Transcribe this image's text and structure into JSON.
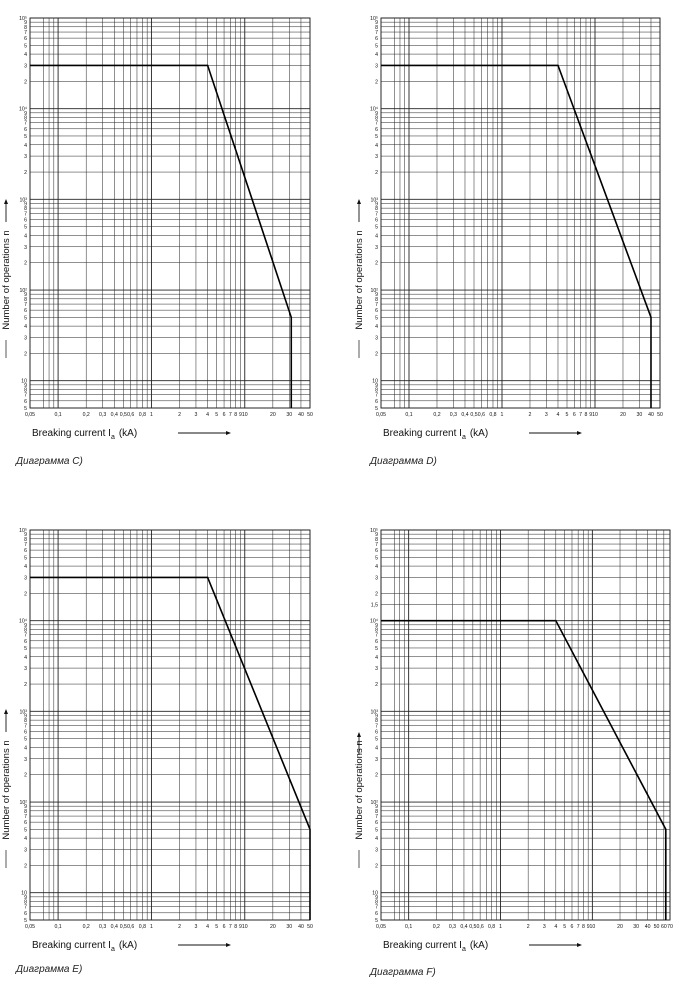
{
  "chart_data": [
    {
      "type": "line",
      "caption": "Диаграмма C)",
      "xlabel": "Breaking current  I",
      "xlabel_sub": "a",
      "xlabel_unit": "(kA)",
      "ylabel": "Number of operations n",
      "xscale": "log",
      "yscale": "log",
      "xlim": [
        0.05,
        50
      ],
      "ylim": [
        5,
        100000
      ],
      "x_ticks": [
        "0,05",
        "0,1",
        "0,2",
        "0,3",
        "0,4",
        "0,5",
        "0,6",
        "0,8",
        "1",
        "2",
        "3",
        "4",
        "5",
        "6",
        "7",
        "8",
        "9",
        "10",
        "20",
        "30",
        "40",
        "50"
      ],
      "y_ticks": [
        "10⁵",
        "9",
        "8",
        "7",
        "6",
        "5",
        "4",
        "3",
        "2",
        "10⁴",
        "9",
        "8",
        "7",
        "6",
        "5",
        "4",
        "3",
        "2",
        "10³",
        "9",
        "8",
        "7",
        "6",
        "5",
        "4",
        "3",
        "2",
        "10²",
        "9",
        "8",
        "7",
        "6",
        "5",
        "4",
        "3",
        "2",
        "10",
        "9",
        "8",
        "7",
        "6",
        "5"
      ],
      "grid": true,
      "x": [
        0.05,
        4,
        31.5,
        31.5
      ],
      "y": [
        30000,
        30000,
        50,
        5
      ]
    },
    {
      "type": "line",
      "caption": "Диаграмма D)",
      "xlabel": "Breaking current  I",
      "xlabel_sub": "a",
      "xlabel_unit": "(kA)",
      "ylabel": "Number of operations n",
      "xscale": "log",
      "yscale": "log",
      "xlim": [
        0.05,
        50
      ],
      "ylim": [
        5,
        100000
      ],
      "x_ticks": [
        "0,05",
        "0,1",
        "0,2",
        "0,3",
        "0,4",
        "0,5",
        "0,6",
        "0,8",
        "1",
        "2",
        "3",
        "4",
        "5",
        "6",
        "7",
        "8",
        "9",
        "10",
        "20",
        "30",
        "40",
        "50"
      ],
      "y_ticks": [
        "10⁵",
        "9",
        "8",
        "7",
        "6",
        "5",
        "4",
        "3",
        "2",
        "10⁴",
        "9",
        "8",
        "7",
        "6",
        "5",
        "4",
        "3",
        "2",
        "10³",
        "9",
        "8",
        "7",
        "6",
        "5",
        "4",
        "3",
        "2",
        "10²",
        "9",
        "8",
        "7",
        "6",
        "5",
        "4",
        "3",
        "2",
        "10",
        "9",
        "8",
        "7",
        "6",
        "5"
      ],
      "grid": true,
      "x": [
        0.05,
        4,
        40,
        40
      ],
      "y": [
        30000,
        30000,
        50,
        5
      ]
    },
    {
      "type": "line",
      "caption": "Диаграмма E)",
      "xlabel": "Breaking current  I",
      "xlabel_sub": "a",
      "xlabel_unit": "(kA)",
      "ylabel": "Number of operations n",
      "xscale": "log",
      "yscale": "log",
      "xlim": [
        0.05,
        50
      ],
      "ylim": [
        5,
        100000
      ],
      "x_ticks": [
        "0,05",
        "0,1",
        "0,2",
        "0,3",
        "0,4",
        "0,5",
        "0,6",
        "0,8",
        "1",
        "2",
        "3",
        "4",
        "5",
        "6",
        "7",
        "8",
        "9",
        "10",
        "20",
        "30",
        "40",
        "50"
      ],
      "y_ticks": [
        "10⁵",
        "9",
        "8",
        "7",
        "6",
        "5",
        "4",
        "3",
        "2",
        "10⁴",
        "9",
        "8",
        "7",
        "6",
        "5",
        "4",
        "3",
        "2",
        "10³",
        "9",
        "8",
        "7",
        "6",
        "5",
        "4",
        "3",
        "2",
        "10²",
        "9",
        "8",
        "7",
        "6",
        "5",
        "4",
        "3",
        "2",
        "10",
        "9",
        "8",
        "7",
        "6",
        "5"
      ],
      "grid": true,
      "x": [
        0.05,
        4,
        50,
        50
      ],
      "y": [
        30000,
        30000,
        50,
        5
      ]
    },
    {
      "type": "line",
      "caption": "Диаграмма F)",
      "xlabel": "Breaking current  I",
      "xlabel_sub": "a",
      "xlabel_unit": "(kA)",
      "ylabel": "Number of operations n",
      "xscale": "log",
      "yscale": "log",
      "xlim": [
        0.05,
        70
      ],
      "ylim": [
        5,
        100000
      ],
      "x_ticks": [
        "0,05",
        "0,1",
        "0,2",
        "0,3",
        "0,4",
        "0,5",
        "0,6",
        "0,8",
        "1",
        "2",
        "3",
        "4",
        "5",
        "6",
        "7",
        "8",
        "9",
        "10",
        "20",
        "30",
        "40",
        "50",
        "60",
        "70"
      ],
      "y_ticks": [
        "10⁵",
        "9",
        "8",
        "7",
        "6",
        "5",
        "4",
        "3",
        "2",
        "1,5",
        "10⁴",
        "9",
        "8",
        "7",
        "6",
        "5",
        "4",
        "3",
        "2",
        "10³",
        "9",
        "8",
        "7",
        "6",
        "5",
        "4",
        "3",
        "2",
        "10²",
        "9",
        "8",
        "7",
        "6",
        "5",
        "4",
        "3",
        "2",
        "10",
        "9",
        "8",
        "7",
        "6",
        "5"
      ],
      "grid": true,
      "x": [
        0.05,
        4,
        63,
        63
      ],
      "y": [
        10000,
        10000,
        50,
        5
      ]
    }
  ]
}
